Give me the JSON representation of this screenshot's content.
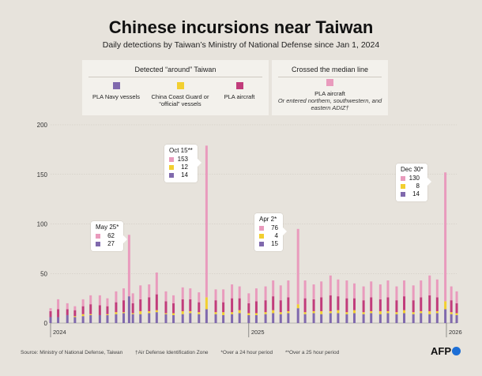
{
  "title": "Chinese incursions near Taiwan",
  "subtitle": "Daily detections by Taiwan’s Ministry of National Defense since Jan 1, 2024",
  "legend": {
    "around_header": "Detected “around” Taiwan",
    "median_header": "Crossed the median line",
    "navy": "PLA Navy vessels",
    "coast_guard": "China Coast Guard or “official” vessels",
    "aircraft": "PLA aircraft",
    "crossed_aircraft": "PLA aircraft",
    "crossed_note": "Or entered northern, southwestern, and eastern ADIZ†"
  },
  "colors": {
    "navy": "#8069ad",
    "coast_guard": "#f2cf30",
    "aircraft": "#c13c7b",
    "crossed": "#e99bbd"
  },
  "callouts": [
    {
      "date": "May 25*",
      "values": [
        {
          "series": "crossed",
          "value": "62"
        },
        {
          "series": "navy",
          "value": "27"
        }
      ]
    },
    {
      "date": "Oct 15**",
      "values": [
        {
          "series": "crossed",
          "value": "153"
        },
        {
          "series": "coast_guard",
          "value": "12"
        },
        {
          "series": "navy",
          "value": "14"
        }
      ]
    },
    {
      "date": "Apr 2*",
      "values": [
        {
          "series": "crossed",
          "value": "76"
        },
        {
          "series": "coast_guard",
          "value": "4"
        },
        {
          "series": "navy",
          "value": "15"
        }
      ]
    },
    {
      "date": "Dec 30*",
      "values": [
        {
          "series": "crossed",
          "value": "130"
        },
        {
          "series": "coast_guard",
          "value": "8"
        },
        {
          "series": "navy",
          "value": "14"
        }
      ]
    }
  ],
  "footer": {
    "source": "Source: Ministry of National Defense, Taiwan",
    "adiz": "†Air Defense Identification Zone",
    "note24": "*Over a 24 hour period",
    "note25": "**Over a 25 hour period",
    "logo": "AFP"
  },
  "chart_data": {
    "type": "bar",
    "stacked": true,
    "x_start": "2024-01-01",
    "x_end": "2026-01-20",
    "x_ticks": [
      "2024",
      "2025",
      "2026"
    ],
    "y_ticks": [
      "0",
      "50",
      "100",
      "150",
      "200"
    ],
    "ylim": [
      0,
      200
    ],
    "grid": true,
    "series_names": [
      "PLA Navy vessels",
      "China Coast Guard or “official” vessels",
      "PLA aircraft",
      "PLA aircraft (crossed the median line)"
    ],
    "series_order": [
      "navy",
      "coast_guard",
      "aircraft",
      "crossed"
    ],
    "days": [
      {
        "date": "2024-01-01",
        "navy": 6,
        "coast_guard": 0,
        "aircraft": 6,
        "crossed": 3
      },
      {
        "date": "2024-01-15",
        "navy": 6,
        "coast_guard": 0,
        "aircraft": 8,
        "crossed": 10
      },
      {
        "date": "2024-02-01",
        "navy": 8,
        "coast_guard": 0,
        "aircraft": 6,
        "crossed": 6
      },
      {
        "date": "2024-02-15",
        "navy": 6,
        "coast_guard": 1,
        "aircraft": 6,
        "crossed": 4
      },
      {
        "date": "2024-03-01",
        "navy": 7,
        "coast_guard": 2,
        "aircraft": 8,
        "crossed": 7
      },
      {
        "date": "2024-03-15",
        "navy": 8,
        "coast_guard": 1,
        "aircraft": 10,
        "crossed": 9
      },
      {
        "date": "2024-04-01",
        "navy": 8,
        "coast_guard": 0,
        "aircraft": 10,
        "crossed": 10
      },
      {
        "date": "2024-04-15",
        "navy": 8,
        "coast_guard": 1,
        "aircraft": 8,
        "crossed": 8
      },
      {
        "date": "2024-05-01",
        "navy": 9,
        "coast_guard": 2,
        "aircraft": 10,
        "crossed": 11
      },
      {
        "date": "2024-05-15",
        "navy": 10,
        "coast_guard": 1,
        "aircraft": 12,
        "crossed": 12
      },
      {
        "date": "2024-05-25",
        "navy": 27,
        "coast_guard": 0,
        "aircraft": 0,
        "crossed": 62
      },
      {
        "date": "2024-06-01",
        "navy": 9,
        "coast_guard": 1,
        "aircraft": 10,
        "crossed": 10
      },
      {
        "date": "2024-06-15",
        "navy": 9,
        "coast_guard": 3,
        "aircraft": 12,
        "crossed": 14
      },
      {
        "date": "2024-07-01",
        "navy": 10,
        "coast_guard": 2,
        "aircraft": 14,
        "crossed": 13
      },
      {
        "date": "2024-07-15",
        "navy": 11,
        "coast_guard": 2,
        "aircraft": 16,
        "crossed": 22
      },
      {
        "date": "2024-08-01",
        "navy": 9,
        "coast_guard": 1,
        "aircraft": 12,
        "crossed": 10
      },
      {
        "date": "2024-08-15",
        "navy": 8,
        "coast_guard": 2,
        "aircraft": 10,
        "crossed": 8
      },
      {
        "date": "2024-09-01",
        "navy": 9,
        "coast_guard": 3,
        "aircraft": 12,
        "crossed": 12
      },
      {
        "date": "2024-09-15",
        "navy": 10,
        "coast_guard": 2,
        "aircraft": 12,
        "crossed": 11
      },
      {
        "date": "2024-10-01",
        "navy": 9,
        "coast_guard": 2,
        "aircraft": 10,
        "crossed": 10
      },
      {
        "date": "2024-10-15",
        "navy": 14,
        "coast_guard": 12,
        "aircraft": 0,
        "crossed": 153
      },
      {
        "date": "2024-11-01",
        "navy": 9,
        "coast_guard": 2,
        "aircraft": 12,
        "crossed": 11
      },
      {
        "date": "2024-11-15",
        "navy": 8,
        "coast_guard": 3,
        "aircraft": 10,
        "crossed": 13
      },
      {
        "date": "2024-12-01",
        "navy": 9,
        "coast_guard": 2,
        "aircraft": 14,
        "crossed": 14
      },
      {
        "date": "2024-12-15",
        "navy": 10,
        "coast_guard": 3,
        "aircraft": 12,
        "crossed": 12
      },
      {
        "date": "2025-01-01",
        "navy": 8,
        "coast_guard": 2,
        "aircraft": 10,
        "crossed": 10
      },
      {
        "date": "2025-01-15",
        "navy": 8,
        "coast_guard": 2,
        "aircraft": 12,
        "crossed": 13
      },
      {
        "date": "2025-02-01",
        "navy": 9,
        "coast_guard": 2,
        "aircraft": 12,
        "crossed": 14
      },
      {
        "date": "2025-02-15",
        "navy": 10,
        "coast_guard": 3,
        "aircraft": 14,
        "crossed": 16
      },
      {
        "date": "2025-03-01",
        "navy": 9,
        "coast_guard": 2,
        "aircraft": 12,
        "crossed": 15
      },
      {
        "date": "2025-03-15",
        "navy": 10,
        "coast_guard": 2,
        "aircraft": 14,
        "crossed": 17
      },
      {
        "date": "2025-04-02",
        "navy": 15,
        "coast_guard": 4,
        "aircraft": 0,
        "crossed": 76
      },
      {
        "date": "2025-04-15",
        "navy": 9,
        "coast_guard": 2,
        "aircraft": 14,
        "crossed": 18
      },
      {
        "date": "2025-05-01",
        "navy": 10,
        "coast_guard": 2,
        "aircraft": 12,
        "crossed": 15
      },
      {
        "date": "2025-05-15",
        "navy": 9,
        "coast_guard": 3,
        "aircraft": 14,
        "crossed": 16
      },
      {
        "date": "2025-06-01",
        "navy": 10,
        "coast_guard": 2,
        "aircraft": 16,
        "crossed": 20
      },
      {
        "date": "2025-06-15",
        "navy": 10,
        "coast_guard": 3,
        "aircraft": 14,
        "crossed": 17
      },
      {
        "date": "2025-07-01",
        "navy": 9,
        "coast_guard": 2,
        "aircraft": 14,
        "crossed": 18
      },
      {
        "date": "2025-07-15",
        "navy": 10,
        "coast_guard": 3,
        "aircraft": 12,
        "crossed": 15
      },
      {
        "date": "2025-08-01",
        "navy": 9,
        "coast_guard": 2,
        "aircraft": 12,
        "crossed": 14
      },
      {
        "date": "2025-08-15",
        "navy": 10,
        "coast_guard": 2,
        "aircraft": 14,
        "crossed": 16
      },
      {
        "date": "2025-09-01",
        "navy": 9,
        "coast_guard": 3,
        "aircraft": 12,
        "crossed": 15
      },
      {
        "date": "2025-09-15",
        "navy": 10,
        "coast_guard": 2,
        "aircraft": 14,
        "crossed": 17
      },
      {
        "date": "2025-10-01",
        "navy": 9,
        "coast_guard": 2,
        "aircraft": 12,
        "crossed": 14
      },
      {
        "date": "2025-10-15",
        "navy": 10,
        "coast_guard": 3,
        "aircraft": 14,
        "crossed": 16
      },
      {
        "date": "2025-11-01",
        "navy": 9,
        "coast_guard": 2,
        "aircraft": 12,
        "crossed": 15
      },
      {
        "date": "2025-11-15",
        "navy": 10,
        "coast_guard": 2,
        "aircraft": 14,
        "crossed": 17
      },
      {
        "date": "2025-12-01",
        "navy": 9,
        "coast_guard": 3,
        "aircraft": 16,
        "crossed": 20
      },
      {
        "date": "2025-12-15",
        "navy": 10,
        "coast_guard": 2,
        "aircraft": 14,
        "crossed": 18
      },
      {
        "date": "2025-12-30",
        "navy": 14,
        "coast_guard": 8,
        "aircraft": 0,
        "crossed": 130
      },
      {
        "date": "2026-01-10",
        "navy": 9,
        "coast_guard": 2,
        "aircraft": 12,
        "crossed": 14
      },
      {
        "date": "2026-01-20",
        "navy": 8,
        "coast_guard": 2,
        "aircraft": 10,
        "crossed": 12
      }
    ]
  }
}
